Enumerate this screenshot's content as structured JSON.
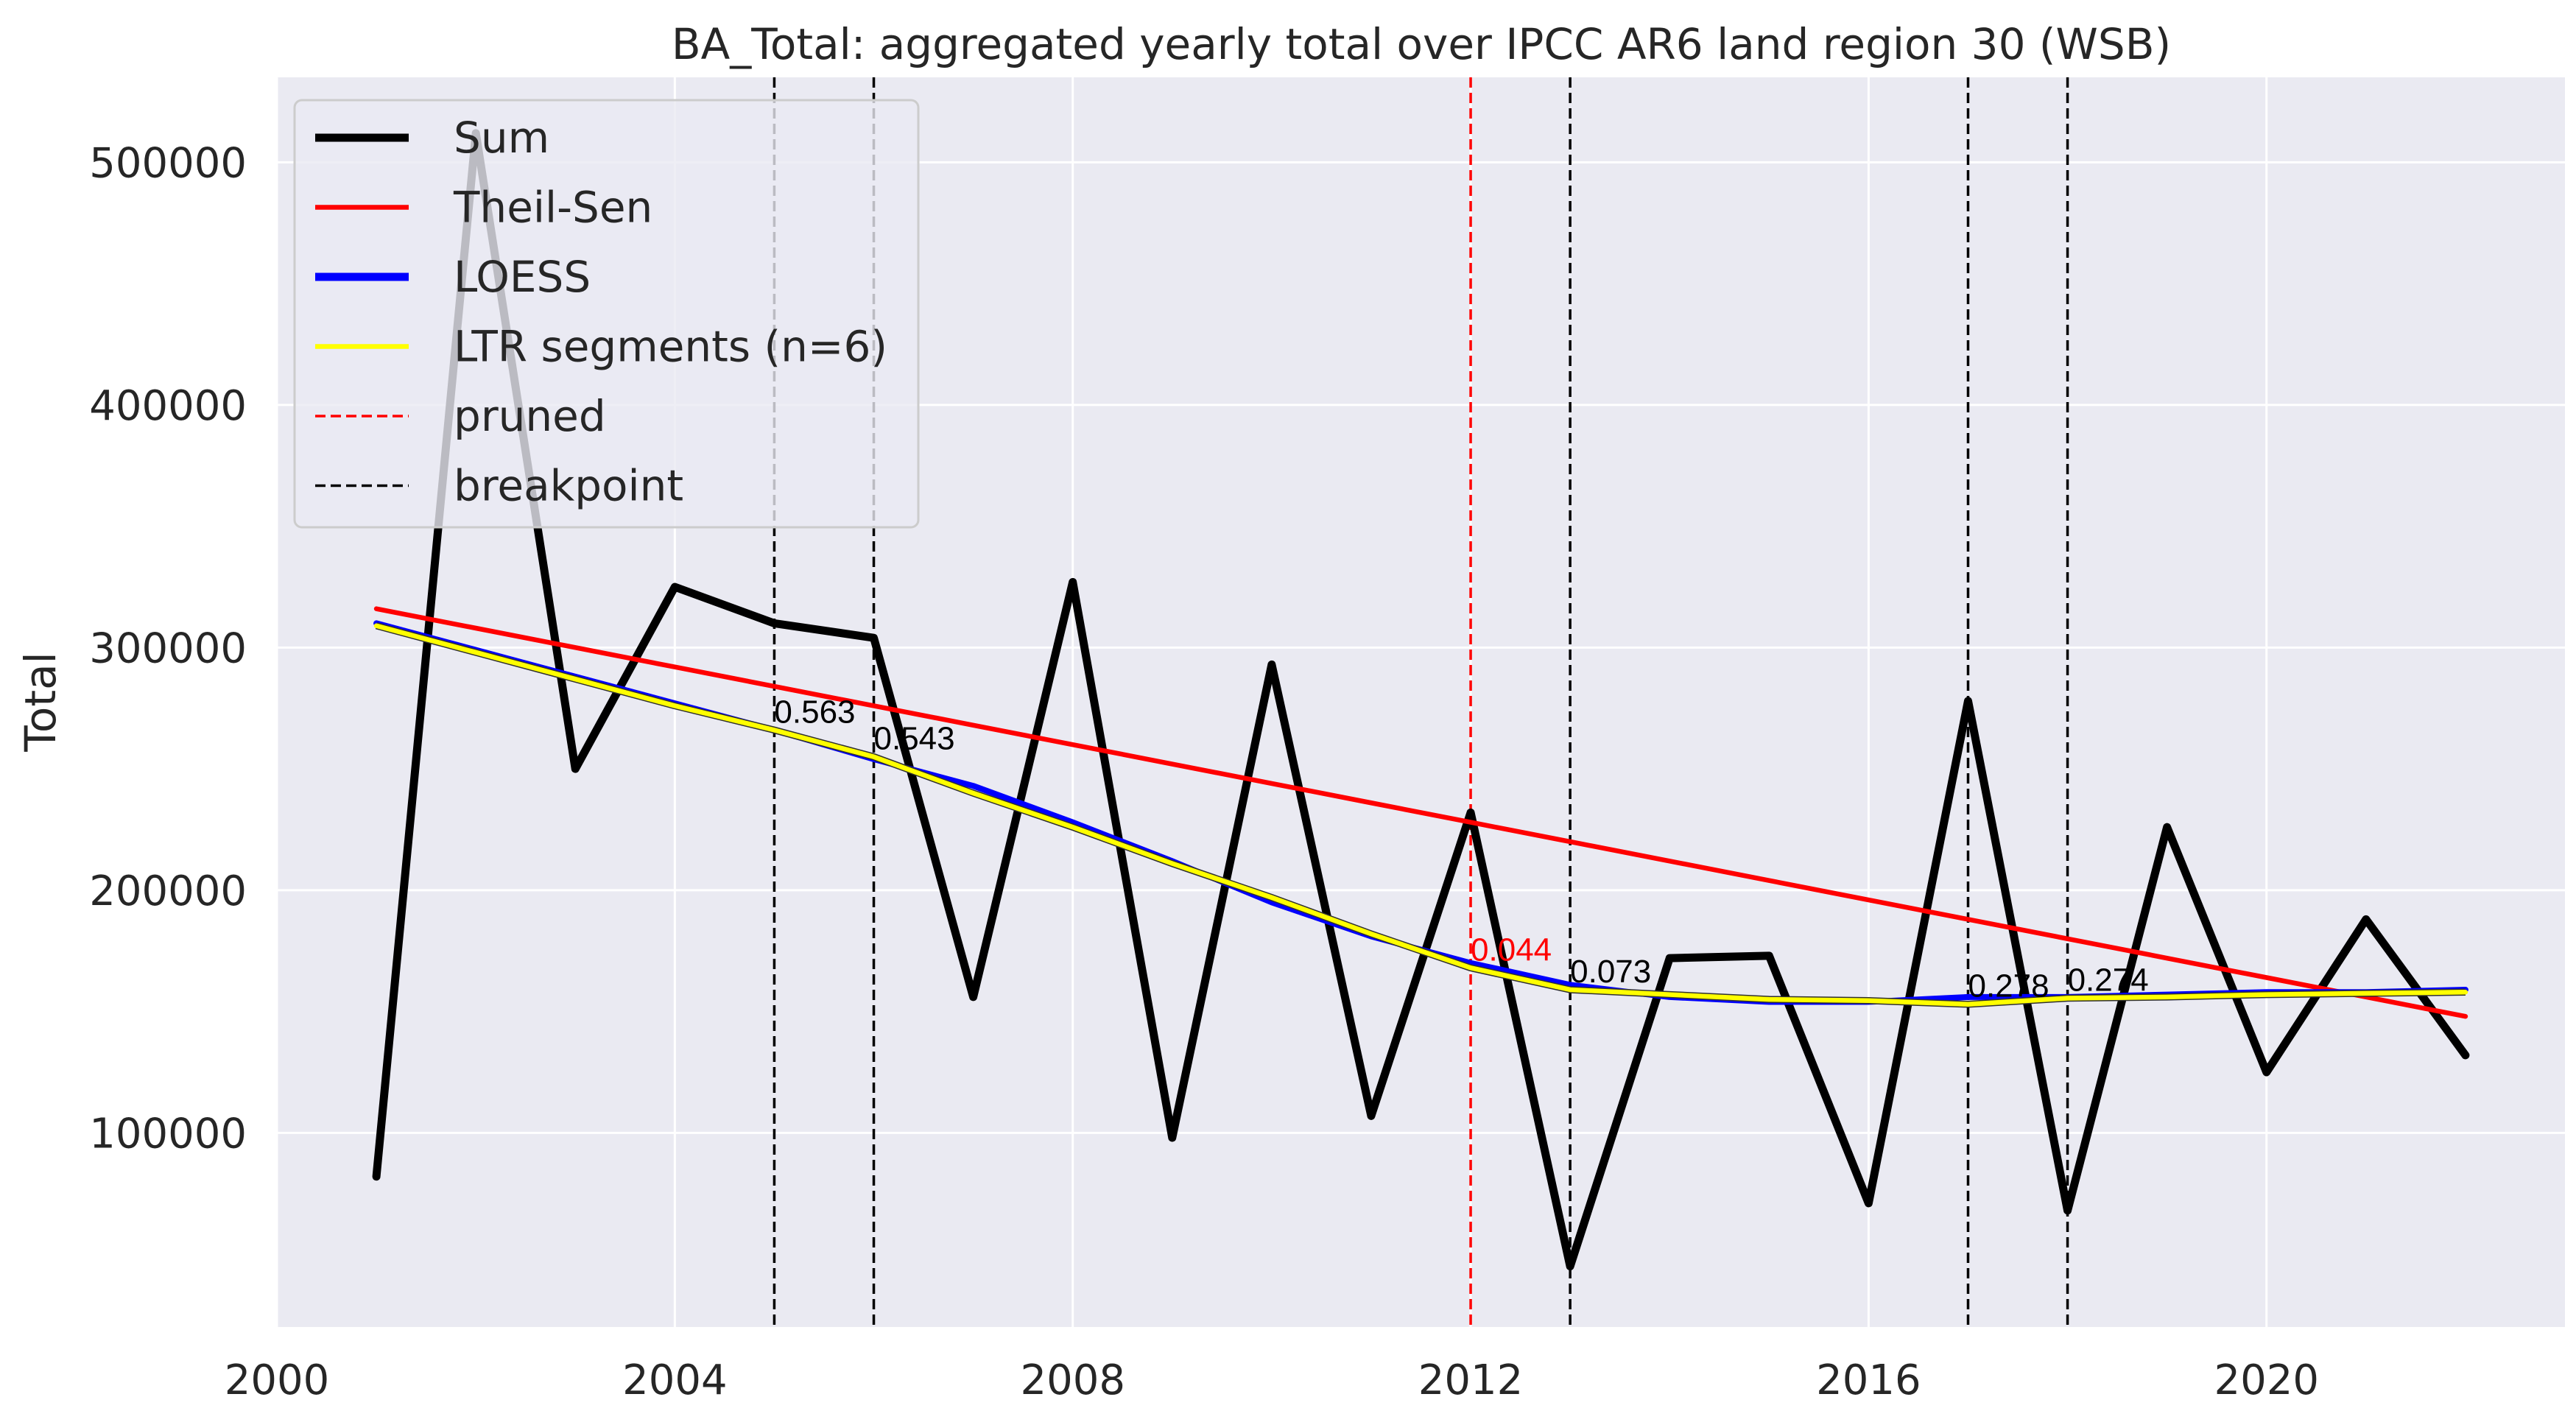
{
  "chart_data": {
    "type": "line",
    "title": "BA_Total: aggregated yearly total over IPCC AR6 land region 30 (WSB)",
    "xlabel": "",
    "ylabel": "Total",
    "xlim": [
      2000,
      2023
    ],
    "ylim": [
      20000,
      535000
    ],
    "xticks": [
      2000,
      2004,
      2008,
      2012,
      2016,
      2020
    ],
    "yticks": [
      100000,
      200000,
      300000,
      400000,
      500000
    ],
    "grid": true,
    "legend_position": "top-left",
    "x": [
      2001,
      2002,
      2003,
      2004,
      2005,
      2006,
      2007,
      2008,
      2009,
      2010,
      2011,
      2012,
      2013,
      2014,
      2015,
      2016,
      2017,
      2018,
      2019,
      2020,
      2021,
      2022
    ],
    "series": [
      {
        "name": "Sum",
        "color": "#000000",
        "values": [
          82000,
          512000,
          250000,
          325000,
          310000,
          304000,
          156000,
          327000,
          98000,
          293000,
          107000,
          232000,
          45000,
          172000,
          173000,
          71000,
          278000,
          68000,
          226000,
          125000,
          188000,
          132000
        ]
      },
      {
        "name": "Theil-Sen",
        "color": "#ff0000",
        "values": [
          316000,
          308000,
          300000,
          292000,
          284000,
          276000,
          268000,
          260000,
          252000,
          244000,
          236000,
          228000,
          220000,
          212000,
          204000,
          196000,
          188000,
          180000,
          172000,
          164000,
          156000,
          148000
        ]
      },
      {
        "name": "LOESS",
        "color": "#0000ff",
        "values": [
          310000,
          299000,
          288000,
          277000,
          266000,
          254000,
          243000,
          228000,
          212000,
          195000,
          181000,
          170000,
          161000,
          156000,
          154000,
          154000,
          156000,
          156000,
          157000,
          158000,
          158000,
          159000
        ]
      },
      {
        "name": "LTR segments (n=6)",
        "color": "#ffff00",
        "values": [
          309000,
          298000,
          287000,
          276000,
          266000,
          255000,
          240000,
          226000,
          211000,
          197000,
          182000,
          168000,
          159000,
          157000,
          155000,
          154500,
          153000,
          155500,
          156000,
          157000,
          157500,
          158000
        ]
      }
    ],
    "pruned": [
      {
        "x": 2012,
        "label": "0.044",
        "color": "#ff0000"
      }
    ],
    "breakpoints": [
      {
        "x": 2005,
        "label": "0.563",
        "y": 266000
      },
      {
        "x": 2006,
        "label": "0.543",
        "y": 255000
      },
      {
        "x": 2013,
        "label": "0.073",
        "y": 159000
      },
      {
        "x": 2017,
        "label": "0.278",
        "y": 153000
      },
      {
        "x": 2018,
        "label": "0.274",
        "y": 155500
      }
    ],
    "legend": [
      {
        "label": "Sum",
        "color": "#000000",
        "style": "thick"
      },
      {
        "label": "Theil-Sen",
        "color": "#ff0000",
        "style": "solid"
      },
      {
        "label": "LOESS",
        "color": "#0000ff",
        "style": "thick"
      },
      {
        "label": "LTR segments (n=6)",
        "color": "#ffff00",
        "style": "solid"
      },
      {
        "label": "pruned",
        "color": "#ff0000",
        "style": "dashed"
      },
      {
        "label": "breakpoint",
        "color": "#000000",
        "style": "dashed"
      }
    ],
    "colors": {
      "background": "#eaeaf2",
      "grid": "#ffffff",
      "text": "#262626"
    }
  }
}
